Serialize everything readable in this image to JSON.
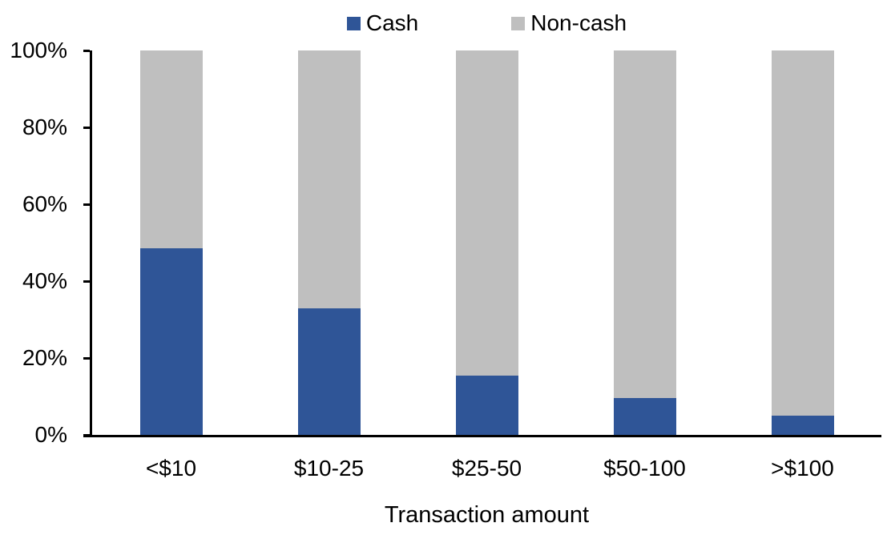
{
  "chart_data": {
    "type": "bar",
    "stacked": true,
    "stacked_to_100_percent": true,
    "categories": [
      "<$10",
      "$10-25",
      "$25-50",
      "$50-100",
      ">$100"
    ],
    "series": [
      {
        "name": "Cash",
        "color": "#2F5597",
        "values": [
          48.5,
          33,
          15.5,
          9.5,
          5
        ]
      },
      {
        "name": "Non-cash",
        "color": "#BFBFBF",
        "values": [
          51.5,
          67,
          84.5,
          90.5,
          95
        ]
      }
    ],
    "title": "",
    "xlabel": "Transaction amount",
    "ylabel": "",
    "ylim": [
      0,
      100
    ],
    "yticks": [
      "0%",
      "20%",
      "40%",
      "60%",
      "80%",
      "100%"
    ],
    "legend_position": "top-center",
    "grid": false,
    "axis_color": "#000000",
    "text_color": "#000000",
    "background_color": "#FFFFFF"
  }
}
